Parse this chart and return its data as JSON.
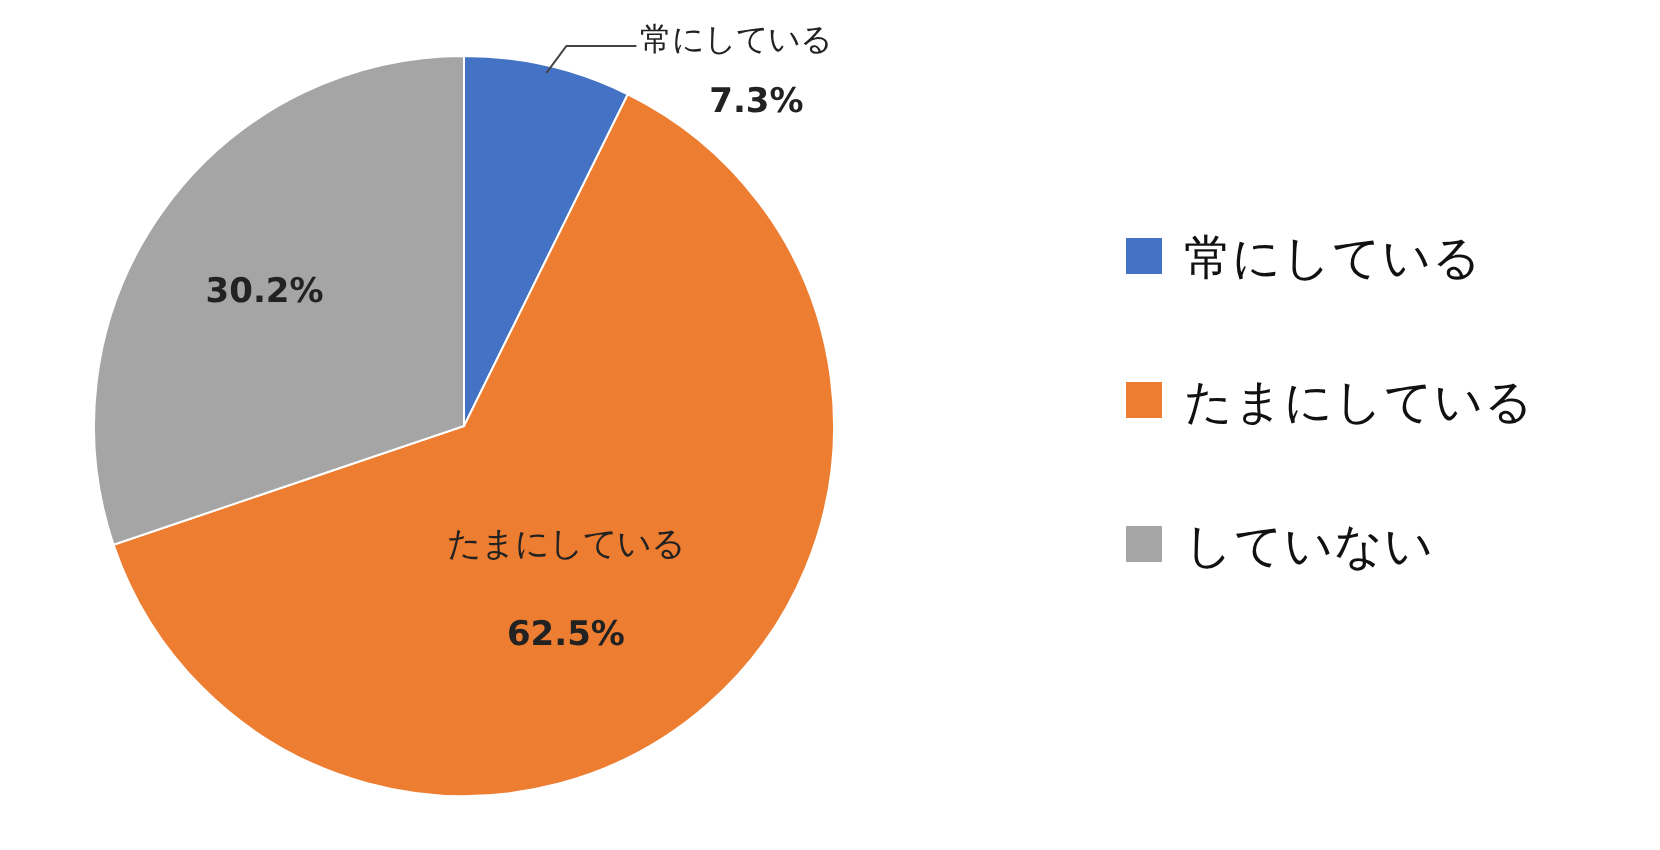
{
  "chart_data": {
    "type": "pie",
    "categories": [
      "常にしている",
      "たまにしている",
      "していない"
    ],
    "values": [
      7.3,
      62.5,
      30.2
    ],
    "colors": [
      "#4472c4",
      "#ed7d31",
      "#a5a5a5"
    ],
    "value_labels": [
      "7.3%",
      "62.5%",
      "30.2%"
    ],
    "annotations": [
      {
        "text": "常にしている",
        "x": "常にしている"
      },
      {
        "text": "たまにしている",
        "x": "たまにしている"
      }
    ],
    "legend": "right"
  }
}
